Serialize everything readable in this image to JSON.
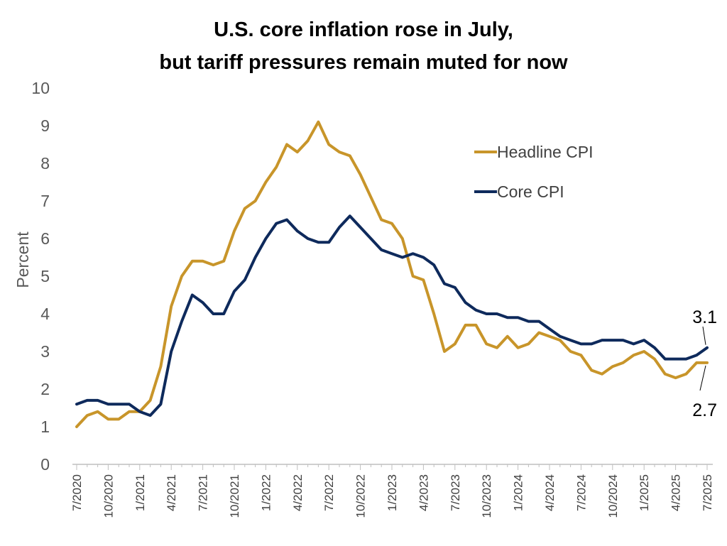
{
  "chart_data": {
    "type": "line",
    "title_line1": "U.S. core inflation rose in July,",
    "title_line2": "but tariff pressures remain muted for now",
    "ylabel": "Percent",
    "xlabel": "",
    "ylim": [
      0,
      10
    ],
    "yticks": [
      0,
      1,
      2,
      3,
      4,
      5,
      6,
      7,
      8,
      9,
      10
    ],
    "xtick_labels": [
      "7/2020",
      "10/2020",
      "1/2021",
      "4/2021",
      "7/2021",
      "10/2021",
      "1/2022",
      "4/2022",
      "7/2022",
      "10/2022",
      "1/2023",
      "4/2023",
      "7/2023",
      "10/2023",
      "1/2024",
      "4/2024",
      "7/2024",
      "10/2024",
      "1/2025",
      "4/2025",
      "7/2025"
    ],
    "x_start": "7/2020",
    "x_end": "7/2025",
    "grid": false,
    "legend_position": "top-right",
    "series": [
      {
        "name": "Headline CPI",
        "color": "#C8952A",
        "values": [
          1.0,
          1.3,
          1.4,
          1.2,
          1.2,
          1.4,
          1.4,
          1.7,
          2.6,
          4.2,
          5.0,
          5.4,
          5.4,
          5.3,
          5.4,
          6.2,
          6.8,
          7.0,
          7.5,
          7.9,
          8.5,
          8.3,
          8.6,
          9.1,
          8.5,
          8.3,
          8.2,
          7.7,
          7.1,
          6.5,
          6.4,
          6.0,
          5.0,
          4.9,
          4.0,
          3.0,
          3.2,
          3.7,
          3.7,
          3.2,
          3.1,
          3.4,
          3.1,
          3.2,
          3.5,
          3.4,
          3.3,
          3.0,
          2.9,
          2.5,
          2.4,
          2.6,
          2.7,
          2.9,
          3.0,
          2.8,
          2.4,
          2.3,
          2.4,
          2.7,
          2.7
        ],
        "end_label": "2.7"
      },
      {
        "name": "Core CPI",
        "color": "#0E2A5C",
        "values": [
          1.6,
          1.7,
          1.7,
          1.6,
          1.6,
          1.6,
          1.4,
          1.3,
          1.6,
          3.0,
          3.8,
          4.5,
          4.3,
          4.0,
          4.0,
          4.6,
          4.9,
          5.5,
          6.0,
          6.4,
          6.5,
          6.2,
          6.0,
          5.9,
          5.9,
          6.3,
          6.6,
          6.3,
          6.0,
          5.7,
          5.6,
          5.5,
          5.6,
          5.5,
          5.3,
          4.8,
          4.7,
          4.3,
          4.1,
          4.0,
          4.0,
          3.9,
          3.9,
          3.8,
          3.8,
          3.6,
          3.4,
          3.3,
          3.2,
          3.2,
          3.3,
          3.3,
          3.3,
          3.2,
          3.3,
          3.1,
          2.8,
          2.8,
          2.8,
          2.9,
          3.1
        ],
        "end_label": "3.1"
      }
    ]
  }
}
